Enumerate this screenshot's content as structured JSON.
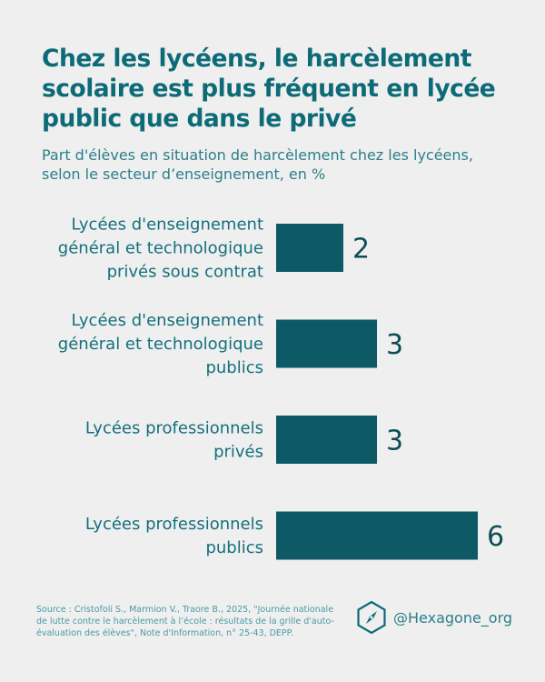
{
  "title": "Chez les lycéens, le harcèlement scolaire est plus fréquent en lycée public que dans le privé",
  "subtitle": "Part d'élèves en situation de harcèlement chez les lycéens, selon le secteur d’enseignement, en %",
  "colors": {
    "bar": "#0d5a66",
    "title": "#0d6b78",
    "label": "#14707c",
    "value": "#0d4d57",
    "background": "#efefef"
  },
  "chart_data": {
    "type": "bar",
    "orientation": "horizontal",
    "title": "Chez les lycéens, le harcèlement scolaire est plus fréquent en lycée public que dans le privé",
    "subtitle": "Part d'élèves en situation de harcèlement chez les lycéens, selon le secteur d’enseignement, en %",
    "categories": [
      "Lycées d'enseignement général et technologique privés sous contrat",
      "Lycées d'enseignement général et technologique publics",
      "Lycées professionnels privés",
      "Lycées professionnels publics"
    ],
    "category_lines": [
      [
        "Lycées d'enseignement",
        "général et technologique",
        "privés sous contrat"
      ],
      [
        "Lycées d'enseignement",
        "général et technologique",
        "publics"
      ],
      [
        "Lycées professionnels",
        "privés"
      ],
      [
        "Lycées professionnels",
        "publics"
      ]
    ],
    "values": [
      2,
      3,
      3,
      6
    ],
    "value_labels": [
      "2",
      "3",
      "3",
      "6"
    ],
    "xlim": [
      0,
      6
    ],
    "xlabel": "",
    "ylabel": "",
    "grid": false,
    "legend": "none"
  },
  "footer": {
    "source": "Source : Cristofoli S., Marmion V., Traore B., 2025, \"Journée nationale de lutte contre le harcèlement à l’école : résultats de la grille d'auto-évaluation des élèves\", Note d'Information, n° 25-43, DEPP.",
    "handle": "@Hexagone_org",
    "logo_icon": "hexagon-compass-logo-icon"
  }
}
